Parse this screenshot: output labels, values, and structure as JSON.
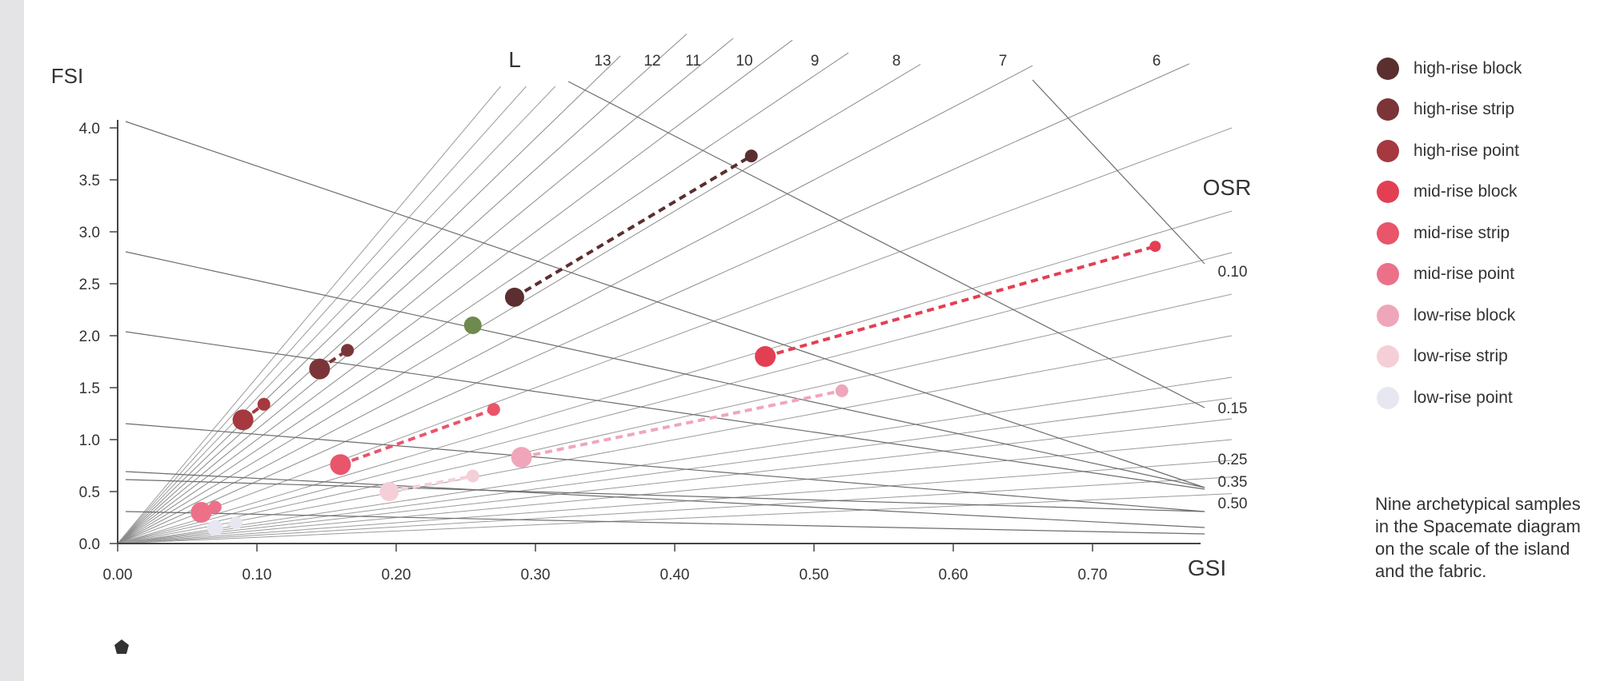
{
  "chart_data": {
    "type": "scatter",
    "title": "",
    "xlabel": "GSI",
    "ylabel": "FSI",
    "xlim": [
      0,
      0.8
    ],
    "ylim": [
      0,
      4.0
    ],
    "x_ticks": [
      "0.00",
      "0.10",
      "0.20",
      "0.30",
      "0.40",
      "0.50",
      "0.60",
      "0.70"
    ],
    "y_ticks": [
      "0.0",
      "0.5",
      "1.0",
      "1.5",
      "2.0",
      "2.5",
      "3.0",
      "3.5",
      "4.0"
    ],
    "layer_label": "L",
    "layer_lines": [
      "13",
      "12",
      "11",
      "10",
      "9",
      "8",
      "7",
      "6"
    ],
    "osr_label": "OSR",
    "osr_lines": [
      "0.10",
      "0.15",
      "0.25",
      "0.35",
      "0.50"
    ],
    "series": [
      {
        "name": "high-rise block",
        "color": "#5b2f30",
        "points": [
          [
            0.285,
            2.37
          ],
          [
            0.455,
            3.73
          ]
        ]
      },
      {
        "name": "high-rise strip",
        "color": "#7b3538",
        "points": [
          [
            0.145,
            1.68
          ],
          [
            0.165,
            1.86
          ]
        ]
      },
      {
        "name": "high-rise point",
        "color": "#a5393f",
        "points": [
          [
            0.09,
            1.19
          ],
          [
            0.105,
            1.34
          ]
        ]
      },
      {
        "name": "mid-rise block",
        "color": "#e33f52",
        "points": [
          [
            0.465,
            1.8
          ],
          [
            0.745,
            2.86
          ]
        ]
      },
      {
        "name": "mid-rise strip",
        "color": "#e9556b",
        "points": [
          [
            0.16,
            0.76
          ],
          [
            0.27,
            1.29
          ]
        ]
      },
      {
        "name": "mid-rise point",
        "color": "#ed7089",
        "points": [
          [
            0.06,
            0.3
          ],
          [
            0.07,
            0.35
          ]
        ]
      },
      {
        "name": "low-rise block",
        "color": "#f0a6ba",
        "points": [
          [
            0.29,
            0.83
          ],
          [
            0.52,
            1.47
          ]
        ]
      },
      {
        "name": "low-rise strip",
        "color": "#f5cfd8",
        "points": [
          [
            0.195,
            0.5
          ],
          [
            0.255,
            0.65
          ]
        ]
      },
      {
        "name": "low-rise point",
        "color": "#e7e7f2",
        "points": [
          [
            0.07,
            0.15
          ],
          [
            0.085,
            0.2
          ]
        ]
      }
    ],
    "extra_points": [
      {
        "x": 0.255,
        "y": 2.1,
        "color": "#6e8a4e"
      }
    ],
    "legend_position": "right"
  },
  "caption": "Nine archetypical samples in the Spacemate diagram on the scale of the island and the fabric."
}
